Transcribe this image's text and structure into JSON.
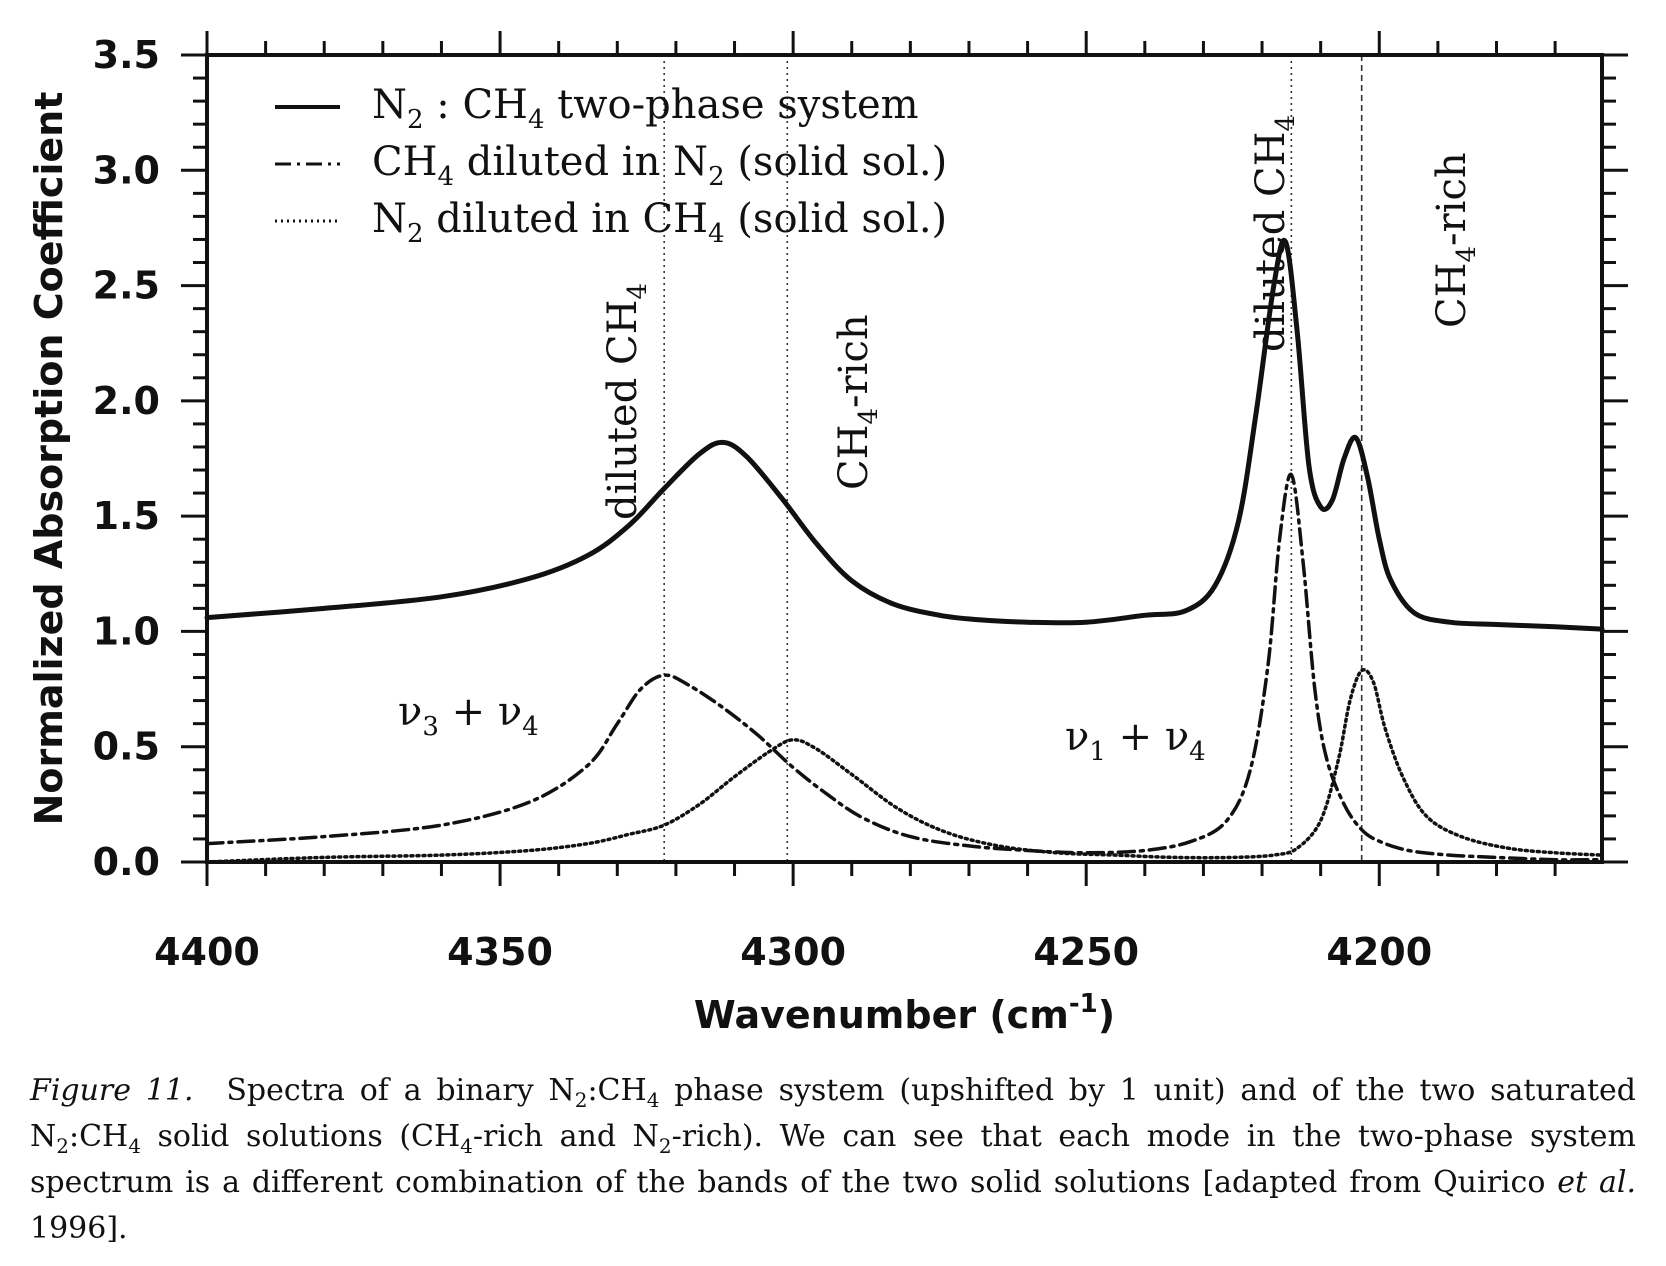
{
  "chart_data": {
    "type": "line",
    "xlabel": "Wavenumber (cm-1)",
    "ylabel": "Normalized Absorption Coefficient",
    "xlim": [
      4400,
      4162
    ],
    "x_reversed": true,
    "ylim": [
      0,
      3.5
    ],
    "xticks": [
      4400,
      4350,
      4300,
      4250,
      4200
    ],
    "xtick_labels": [
      "4400",
      "4350",
      "4300",
      "4250",
      "4200"
    ],
    "yticks": [
      0,
      0.5,
      1,
      1.5,
      2,
      2.5,
      3,
      3.5
    ],
    "ytick_labels": [
      "0.0",
      "0.5",
      "1.0",
      "1.5",
      "2.0",
      "2.5",
      "3.0",
      "3.5"
    ],
    "grid": false,
    "legend_position": "top-left",
    "series": [
      {
        "name": "N2 : CH4 two-phase system",
        "style": "solid",
        "x": [
          4400,
          4380,
          4360,
          4345,
          4335,
          4328,
          4322,
          4316,
          4312,
          4308,
          4302,
          4296,
          4290,
          4283,
          4275,
          4268,
          4260,
          4250,
          4240,
          4233,
          4228,
          4224,
          4221,
          4218,
          4216,
          4214,
          4212,
          4210,
          4208,
          4206,
          4204,
          4202,
          4200,
          4198,
          4194,
          4188,
          4180,
          4170,
          4162
        ],
        "values": [
          1.06,
          1.1,
          1.15,
          1.23,
          1.33,
          1.46,
          1.62,
          1.77,
          1.82,
          1.76,
          1.58,
          1.38,
          1.22,
          1.12,
          1.07,
          1.05,
          1.04,
          1.04,
          1.07,
          1.09,
          1.2,
          1.48,
          1.95,
          2.5,
          2.69,
          2.3,
          1.72,
          1.54,
          1.57,
          1.75,
          1.84,
          1.67,
          1.4,
          1.22,
          1.08,
          1.04,
          1.03,
          1.02,
          1.01
        ]
      },
      {
        "name": "CH4 diluted in N2 (solid sol.)",
        "style": "dash-dot",
        "x": [
          4400,
          4380,
          4360,
          4345,
          4335,
          4330,
          4326,
          4322,
          4318,
          4312,
          4306,
          4300,
          4294,
          4288,
          4280,
          4270,
          4260,
          4250,
          4240,
          4232,
          4226,
          4222,
          4219,
          4217,
          4215,
          4213,
          4211,
          4209,
          4206,
          4203,
          4200,
          4195,
          4188,
          4180,
          4170,
          4162
        ],
        "values": [
          0.08,
          0.11,
          0.16,
          0.26,
          0.42,
          0.6,
          0.75,
          0.81,
          0.77,
          0.67,
          0.55,
          0.41,
          0.29,
          0.19,
          0.11,
          0.07,
          0.05,
          0.04,
          0.05,
          0.09,
          0.18,
          0.4,
          0.85,
          1.4,
          1.68,
          1.3,
          0.75,
          0.45,
          0.25,
          0.14,
          0.09,
          0.05,
          0.03,
          0.02,
          0.01,
          0.01
        ]
      },
      {
        "name": "N2 diluted in CH4 (solid sol.)",
        "style": "dotted",
        "x": [
          4400,
          4380,
          4360,
          4345,
          4335,
          4328,
          4322,
          4316,
          4310,
          4304,
          4300,
          4296,
          4290,
          4282,
          4274,
          4265,
          4255,
          4245,
          4235,
          4225,
          4218,
          4214,
          4210,
          4207,
          4205,
          4203,
          4201,
          4199,
          4196,
          4192,
          4186,
          4178,
          4170,
          4162
        ],
        "values": [
          0.0,
          0.02,
          0.03,
          0.05,
          0.08,
          0.12,
          0.16,
          0.25,
          0.37,
          0.48,
          0.53,
          0.49,
          0.38,
          0.23,
          0.13,
          0.07,
          0.04,
          0.03,
          0.02,
          0.02,
          0.03,
          0.06,
          0.18,
          0.44,
          0.7,
          0.83,
          0.78,
          0.58,
          0.37,
          0.2,
          0.11,
          0.06,
          0.04,
          0.03
        ]
      }
    ],
    "reference_lines": [
      {
        "x": 4322,
        "style": "dotted"
      },
      {
        "x": 4301,
        "style": "dotted"
      },
      {
        "x": 4215,
        "style": "dotted"
      },
      {
        "x": 4203,
        "style": "dashed"
      }
    ],
    "annotations": [
      {
        "text": "diluted CH4",
        "x": 4327,
        "y": 1.95,
        "rotation": -90
      },
      {
        "text": "CH4-rich",
        "x": 4296,
        "y": 2.05,
        "rotation": -90
      },
      {
        "text": "diluted CH4",
        "x": 4220,
        "y": 2.8,
        "rotation": -90
      },
      {
        "text": "CH4-rich",
        "x": 4194,
        "y": 3.1,
        "rotation": -90
      },
      {
        "text": "ν3 + ν4",
        "x": 4372,
        "y": 0.6
      },
      {
        "text": "ν1 + ν4",
        "x": 4250,
        "y": 0.5
      }
    ]
  },
  "caption": {
    "label": "Figure 11.",
    "p1": "Spectra of a binary N",
    "s1": "2",
    "p2": ":CH",
    "s2": "4",
    "p3": " phase system (upshifted by 1 unit) and of the two saturated N",
    "s3": "2",
    "p4": ":CH",
    "s4": "4",
    "p5": " solid solutions (CH",
    "s5": "4",
    "p6": "-rich and N",
    "s6": "2",
    "p7": "-rich). We can see that each mode in the two-phase system spectrum is a different combination of the bands of the two solid solutions [adapted from Quirico ",
    "em": "et al.",
    "p8": " 1996]."
  }
}
